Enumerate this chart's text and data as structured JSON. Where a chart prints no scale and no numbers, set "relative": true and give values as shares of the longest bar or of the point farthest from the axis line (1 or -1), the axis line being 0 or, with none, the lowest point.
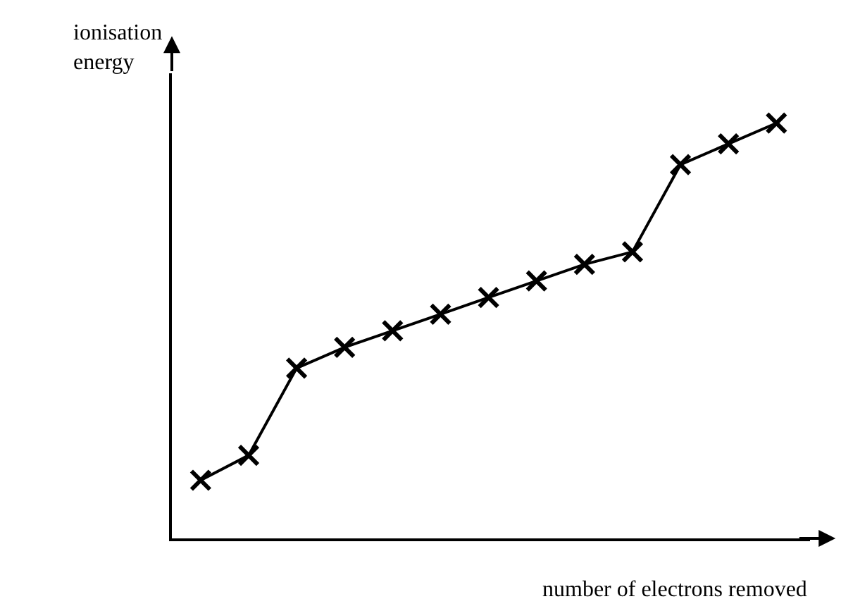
{
  "chart_data": {
    "type": "line",
    "relative": true,
    "xlabel": "number of electrons removed",
    "ylabel": "ionisation\nenergy",
    "categories": [
      null,
      null,
      null,
      null,
      null,
      null,
      null,
      null,
      null,
      null,
      null,
      null,
      null
    ],
    "series": [
      {
        "color": "#000000",
        "values": [
          0.14,
          0.2,
          0.41,
          0.46,
          0.5,
          0.54,
          0.58,
          0.62,
          0.66,
          0.69,
          0.9,
          0.95,
          1
        ]
      }
    ],
    "marker": "cross",
    "line_style": "solid",
    "grid": false
  }
}
